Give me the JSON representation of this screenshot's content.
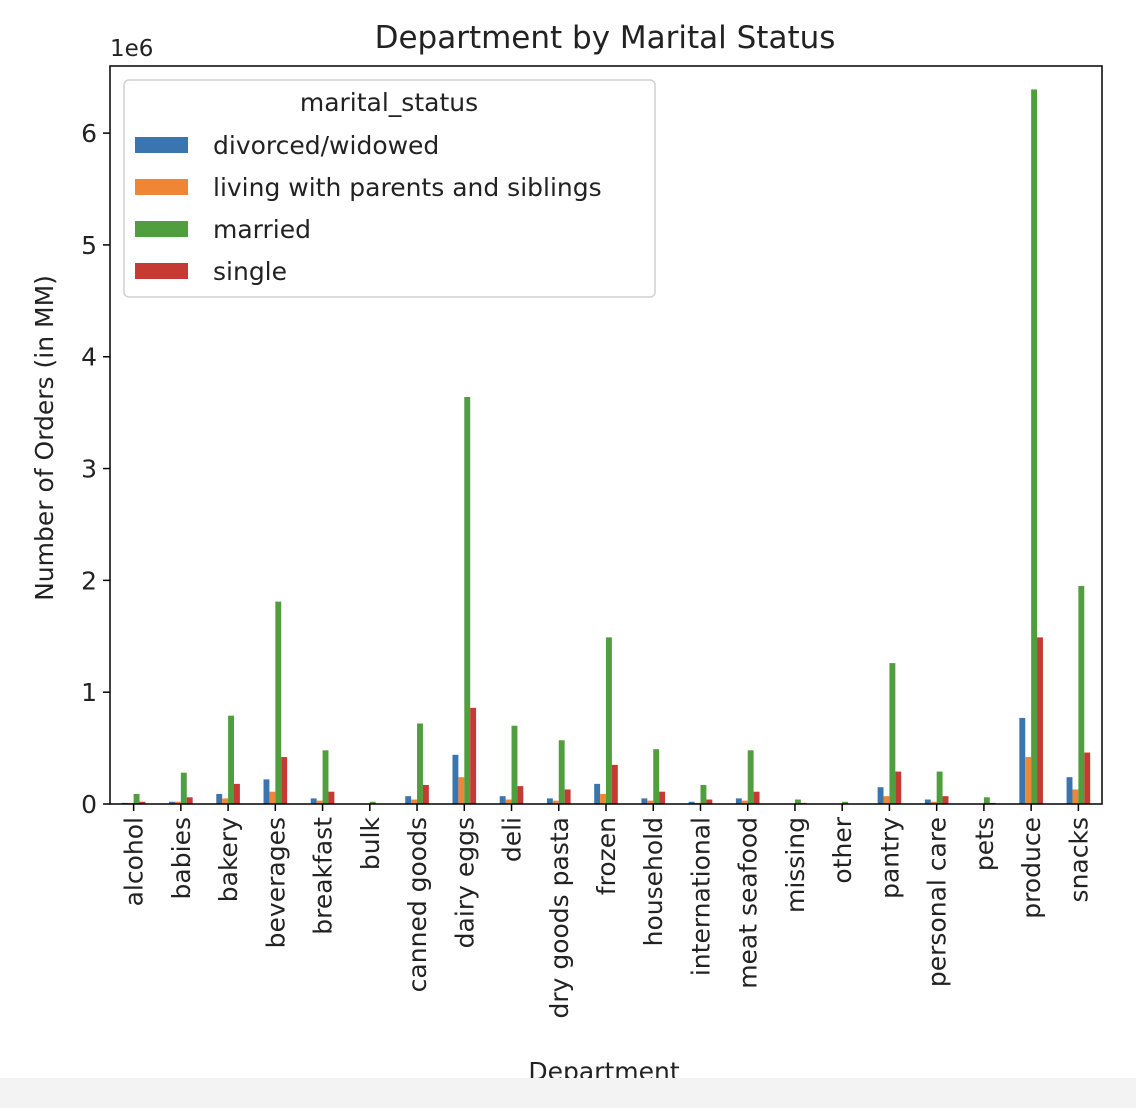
{
  "chart_data": {
    "type": "bar",
    "title": "Department by Marital Status",
    "xlabel": "Department",
    "ylabel": "Number of Orders (in MM)",
    "y_offset_label": "1e6",
    "ylim": [
      0,
      6.6
    ],
    "yticks": [
      0,
      1,
      2,
      3,
      4,
      5,
      6
    ],
    "grid": false,
    "legend": {
      "title": "marital_status",
      "placement": "top-left"
    },
    "categories": [
      "alcohol",
      "babies",
      "bakery",
      "beverages",
      "breakfast",
      "bulk",
      "canned goods",
      "dairy eggs",
      "deli",
      "dry goods pasta",
      "frozen",
      "household",
      "international",
      "meat seafood",
      "missing",
      "other",
      "pantry",
      "personal care",
      "pets",
      "produce",
      "snacks"
    ],
    "series": [
      {
        "name": "divorced/widowed",
        "color": "#3a75b0",
        "values": [
          0.01,
          0.02,
          0.09,
          0.22,
          0.05,
          0.0,
          0.07,
          0.44,
          0.07,
          0.05,
          0.18,
          0.05,
          0.02,
          0.05,
          0.0,
          0.0,
          0.15,
          0.04,
          0.0,
          0.77,
          0.24
        ]
      },
      {
        "name": "living with parents and siblings",
        "color": "#ef8636",
        "values": [
          0.01,
          0.02,
          0.05,
          0.11,
          0.03,
          0.0,
          0.04,
          0.24,
          0.04,
          0.03,
          0.09,
          0.03,
          0.01,
          0.03,
          0.0,
          0.0,
          0.07,
          0.02,
          0.0,
          0.42,
          0.13
        ]
      },
      {
        "name": "married",
        "color": "#519e3e",
        "values": [
          0.09,
          0.28,
          0.79,
          1.81,
          0.48,
          0.02,
          0.72,
          3.64,
          0.7,
          0.57,
          1.49,
          0.49,
          0.17,
          0.48,
          0.04,
          0.02,
          1.26,
          0.29,
          0.06,
          6.39,
          1.95
        ]
      },
      {
        "name": "single",
        "color": "#c53a32",
        "values": [
          0.02,
          0.06,
          0.18,
          0.42,
          0.11,
          0.0,
          0.17,
          0.86,
          0.16,
          0.13,
          0.35,
          0.11,
          0.04,
          0.11,
          0.01,
          0.0,
          0.29,
          0.07,
          0.01,
          1.49,
          0.46
        ]
      }
    ]
  }
}
